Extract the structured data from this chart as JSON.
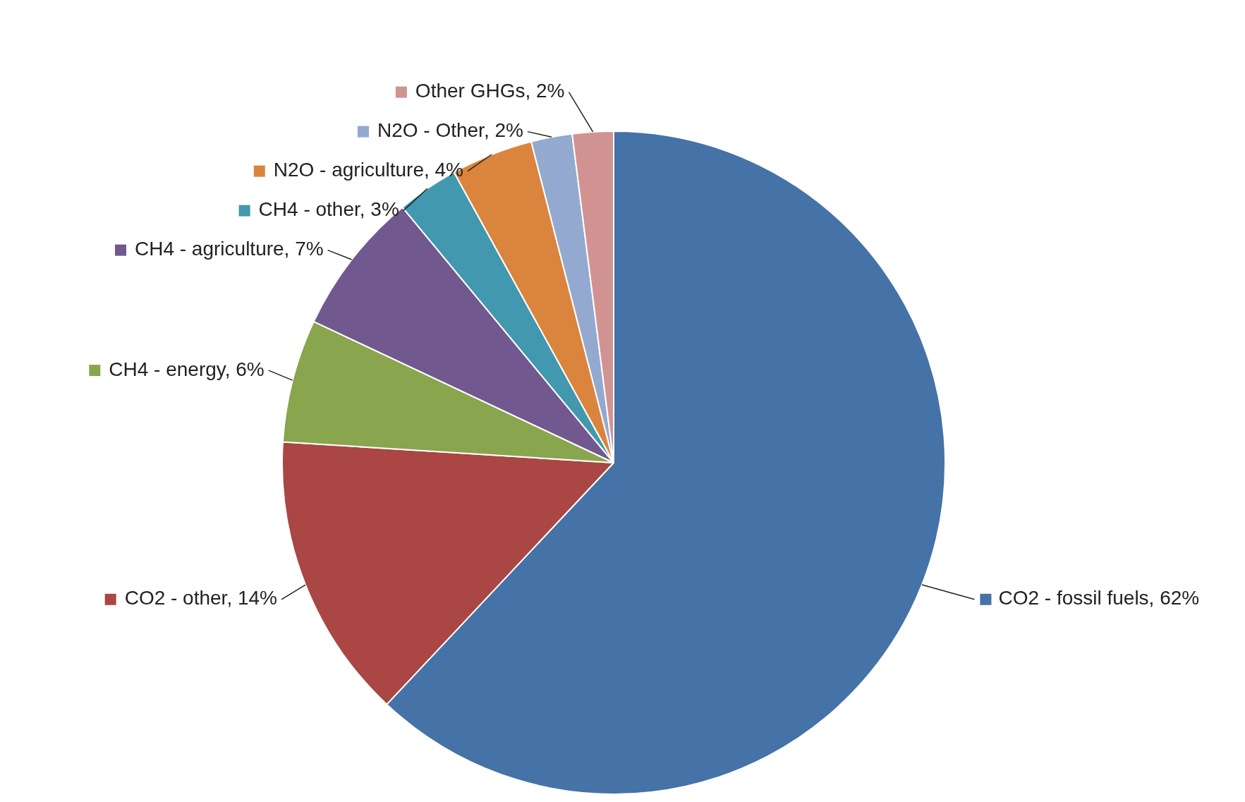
{
  "chart_data": {
    "type": "pie",
    "categories": [
      "CO2 - fossil fuels",
      "CO2 - other",
      "CH4 - energy",
      "CH4 - agriculture",
      "CH4 - other",
      "N2O - agriculture",
      "N2O - Other",
      "Other GHGs"
    ],
    "values": [
      62,
      14,
      6,
      7,
      3,
      4,
      2,
      2
    ],
    "value_labels": [
      "62%",
      "14%",
      "6%",
      "7%",
      "3%",
      "4%",
      "2%",
      "2%"
    ],
    "colors": [
      "#4572a7",
      "#aa4643",
      "#89a54e",
      "#71588f",
      "#4198af",
      "#db843d",
      "#93a9cf",
      "#d19392"
    ],
    "legend": "top right"
  }
}
